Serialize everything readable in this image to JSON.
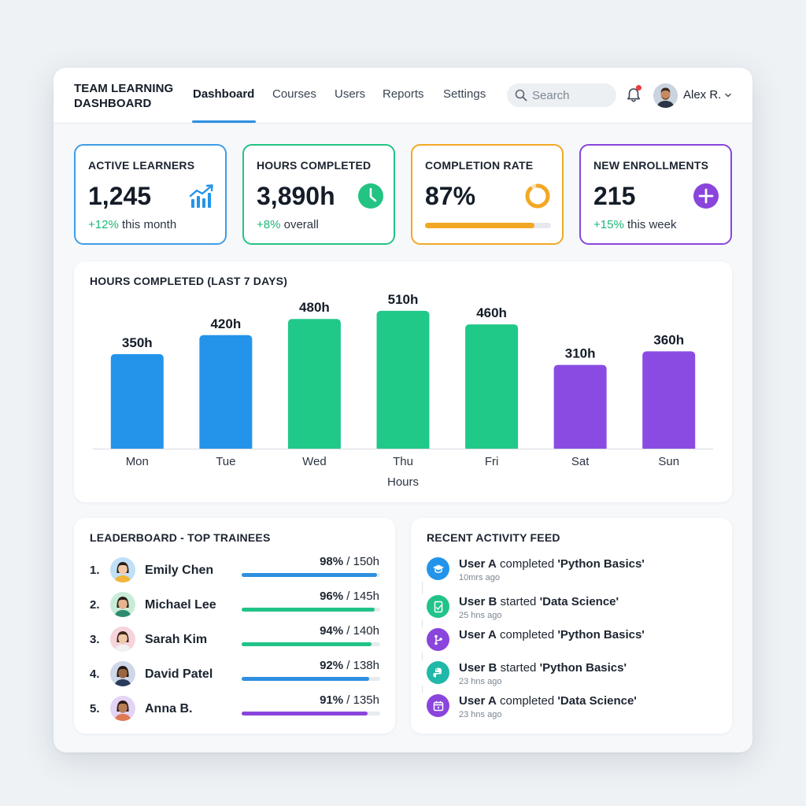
{
  "header": {
    "brand": "TEAM LEARNING DASHBOARD",
    "tabs": [
      "Dashboard",
      "Courses",
      "Users",
      "Reports",
      "Settings"
    ],
    "active_tab": "Dashboard",
    "search_placeholder": "Search",
    "user_name": "Alex R.",
    "notification_icon": "bell-icon",
    "user_menu_icon": "chevron-down-icon"
  },
  "stats": [
    {
      "title": "ACTIVE LEARNERS",
      "value": "1,245",
      "trend": "+12%",
      "trend_suffix": " this month",
      "icon": "trending-up-chart-icon",
      "color": "#3f9ee6"
    },
    {
      "title": "HOURS COMPLETED",
      "value": "3,890h",
      "trend": "+8%",
      "trend_suffix": " overall",
      "icon": "clock-icon",
      "color": "#22c383"
    },
    {
      "title": "COMPLETION RATE",
      "value": "87%",
      "progress": 0.87,
      "icon": "donut-progress-icon",
      "color": "#f3a825"
    },
    {
      "title": "NEW ENROLLMENTS",
      "value": "215",
      "trend": "+15%",
      "trend_suffix": " this week",
      "icon": "plus-circle-icon",
      "color": "#8a45dc"
    }
  ],
  "chart_panel": {
    "title": "HOURS COMPLETED (LAST 7 DAYS)"
  },
  "chart_data": {
    "type": "bar",
    "categories": [
      "Mon",
      "Tue",
      "Wed",
      "Thu",
      "Fri",
      "Sat",
      "Sun"
    ],
    "values": [
      350,
      420,
      480,
      510,
      460,
      310,
      360
    ],
    "value_labels": [
      "350h",
      "420h",
      "480h",
      "510h",
      "460h",
      "310h",
      "360h"
    ],
    "colors": [
      "#2394ea",
      "#2394ea",
      "#21c989",
      "#21c989",
      "#21c989",
      "#8a4be3",
      "#8a4be3"
    ],
    "title": "HOURS COMPLETED (LAST 7 DAYS)",
    "xlabel": "Hours",
    "ylabel": "",
    "ylim": [
      0,
      600
    ],
    "grid": false
  },
  "leaderboard": {
    "title": "LEADERBOARD - TOP TRAINEES",
    "items": [
      {
        "rank": "1.",
        "name": "Emily Chen",
        "percent": "98%",
        "hours": " / 150h",
        "progress": 0.98,
        "color": "#2f8fe0"
      },
      {
        "rank": "2.",
        "name": "Michael Lee",
        "percent": "96%",
        "hours": " / 145h",
        "progress": 0.96,
        "color": "#21c389"
      },
      {
        "rank": "3.",
        "name": "Sarah Kim",
        "percent": "94%",
        "hours": " / 140h",
        "progress": 0.94,
        "color": "#21c389"
      },
      {
        "rank": "4.",
        "name": "David Patel",
        "percent": "92%",
        "hours": " / 138h",
        "progress": 0.92,
        "color": "#2f8fe0"
      },
      {
        "rank": "5.",
        "name": "Anna B.",
        "percent": "91%",
        "hours": " / 135h",
        "progress": 0.91,
        "color": "#8a45dc"
      }
    ]
  },
  "activity": {
    "title": "RECENT ACTIVITY FEED",
    "items": [
      {
        "user": "User A",
        "action": " completed ",
        "course": "'Python Basics'",
        "time": "10mrs ago",
        "icon": "graduation-cap-icon",
        "color": "#2394ea"
      },
      {
        "user": "User B",
        "action": " started ",
        "course": "'Data Science'",
        "time": "25 hns ago",
        "icon": "document-icon",
        "color": "#21c389"
      },
      {
        "user": "User A",
        "action": " completed ",
        "course": "'Python Basics'",
        "time": "",
        "icon": "branch-icon",
        "color": "#8a45dc"
      },
      {
        "user": "User B",
        "action": " started ",
        "course": "'Python Basics'",
        "time": "23 hns ago",
        "icon": "python-icon",
        "color": "#20b8a8"
      },
      {
        "user": "User A",
        "action": " completed ",
        "course": "'Data Science'",
        "time": "23 hns ago",
        "icon": "calendar-icon",
        "color": "#8a45dc"
      }
    ]
  }
}
